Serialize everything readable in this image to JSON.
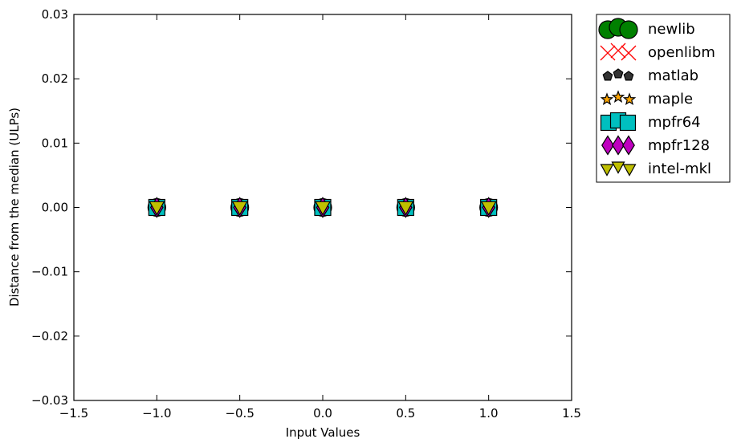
{
  "chart_data": {
    "type": "scatter",
    "xlabel": "Input Values",
    "ylabel": "Distance from the median (ULPs)",
    "xlim": [
      -1.5,
      1.5
    ],
    "ylim": [
      -0.03,
      0.03
    ],
    "x_ticks": [
      "−1.5",
      "−1.0",
      "−0.5",
      "0.0",
      "0.5",
      "1.0",
      "1.5"
    ],
    "y_ticks": [
      "0.03",
      "0.02",
      "0.01",
      "0.00",
      "−0.01",
      "−0.02",
      "−0.03"
    ],
    "grid": false,
    "legend_position": "outside-top-right",
    "x": [
      -1.0,
      -0.5,
      0.0,
      0.5,
      1.0
    ],
    "series": [
      {
        "name": "newlib",
        "marker": "circle",
        "color": "#008000",
        "values": [
          0,
          0,
          0,
          0,
          0
        ]
      },
      {
        "name": "openlibm",
        "marker": "x",
        "color": "#ff0000",
        "values": [
          0,
          0,
          0,
          0,
          0
        ]
      },
      {
        "name": "matlab",
        "marker": "pentagon",
        "color": "#333333",
        "values": [
          0,
          0,
          0,
          0,
          0
        ]
      },
      {
        "name": "maple",
        "marker": "star",
        "color": "#ffa500",
        "values": [
          0,
          0,
          0,
          0,
          0
        ]
      },
      {
        "name": "mpfr64",
        "marker": "square",
        "color": "#00bfbf",
        "values": [
          0,
          0,
          0,
          0,
          0
        ]
      },
      {
        "name": "mpfr128",
        "marker": "diamond",
        "color": "#bf00bf",
        "values": [
          0,
          0,
          0,
          0,
          0
        ]
      },
      {
        "name": "intel-mkl",
        "marker": "triangle-down",
        "color": "#bfbf00",
        "values": [
          0,
          0,
          0,
          0,
          0
        ]
      }
    ]
  }
}
